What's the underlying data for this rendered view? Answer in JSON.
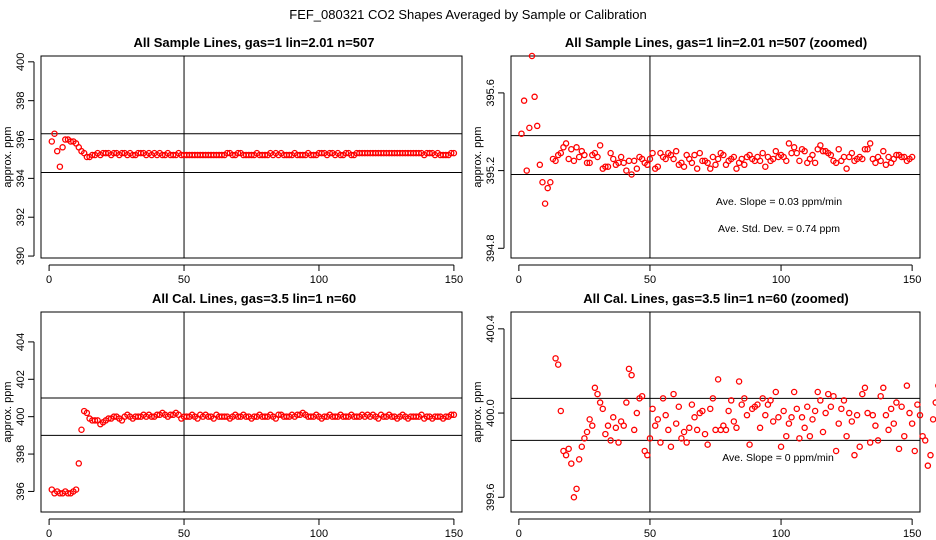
{
  "figure_title": "FEF_080321  CO2 Shapes Averaged by Sample or Calibration",
  "chart_data": [
    {
      "type": "scatter",
      "title": "All Sample Lines, gas=1 lin=2.01 n=507",
      "xlabel": "",
      "ylabel": "approx. ppm",
      "xlim": [
        -3,
        153
      ],
      "ylim": [
        389.9,
        400.3
      ],
      "xticks": [
        0,
        50,
        100,
        150
      ],
      "yticks": [
        390,
        392,
        394,
        396,
        398,
        400
      ],
      "vline": 50,
      "hlines": [
        394.3,
        396.3
      ],
      "annotations": [],
      "x_start": 1,
      "y": [
        395.9,
        396.3,
        395.4,
        394.6,
        395.6,
        396.0,
        396.0,
        395.9,
        395.9,
        395.8,
        395.6,
        395.4,
        395.3,
        395.1,
        395.1,
        395.2,
        395.2,
        395.3,
        395.2,
        395.3,
        395.3,
        395.3,
        395.2,
        395.3,
        395.3,
        395.2,
        395.3,
        395.3,
        395.2,
        395.3,
        395.2,
        395.2,
        395.3,
        395.3,
        395.3,
        395.2,
        395.3,
        395.2,
        395.3,
        395.2,
        395.3,
        395.2,
        395.2,
        395.3,
        395.2,
        395.2,
        395.2,
        395.3,
        395.2,
        395.2,
        395.2,
        395.2,
        395.2,
        395.2,
        395.2,
        395.2,
        395.2,
        395.2,
        395.2,
        395.2,
        395.2,
        395.2,
        395.2,
        395.2,
        395.2,
        395.3,
        395.3,
        395.2,
        395.2,
        395.3,
        395.3,
        395.2,
        395.2,
        395.2,
        395.2,
        395.2,
        395.3,
        395.2,
        395.2,
        395.2,
        395.2,
        395.3,
        395.2,
        395.3,
        395.2,
        395.3,
        395.2,
        395.2,
        395.2,
        395.2,
        395.3,
        395.2,
        395.2,
        395.2,
        395.2,
        395.3,
        395.2,
        395.2,
        395.2,
        395.3,
        395.3,
        395.3,
        395.2,
        395.3,
        395.3,
        395.2,
        395.3,
        395.2,
        395.2,
        395.3,
        395.3,
        395.2,
        395.2,
        395.3,
        395.3,
        395.3,
        395.3,
        395.3,
        395.3,
        395.3,
        395.3,
        395.3,
        395.3,
        395.3,
        395.3,
        395.3,
        395.3,
        395.3,
        395.3,
        395.3,
        395.3,
        395.3,
        395.3,
        395.3,
        395.3,
        395.3,
        395.3,
        395.3,
        395.2,
        395.3,
        395.3,
        395.3,
        395.2,
        395.3,
        395.2,
        395.2,
        395.2,
        395.2,
        395.3,
        395.3
      ]
    },
    {
      "type": "scatter",
      "title": "All Sample Lines, gas=1 lin=2.01 n=507 (zoomed)",
      "xlabel": "",
      "ylabel": "approx. ppm",
      "xlim": [
        -3,
        153
      ],
      "ylim": [
        394.75,
        395.79
      ],
      "xticks": [
        0,
        50,
        100,
        150
      ],
      "yticks": [
        394.8,
        395.2,
        395.6
      ],
      "yticklabels": [
        "394.8",
        "395.2",
        "395.6"
      ],
      "vline": 50,
      "hlines": [
        395.18,
        395.38
      ],
      "annotations": [
        "Ave. Slope =  0.03  ppm/min",
        "Ave. Std. Dev. =  0.74  ppm"
      ],
      "x_start": 1,
      "y": [
        395.39,
        395.56,
        395.2,
        395.42,
        395.79,
        395.58,
        395.43,
        395.23,
        395.14,
        395.03,
        395.11,
        395.14,
        395.26,
        395.25,
        395.28,
        395.29,
        395.32,
        395.34,
        395.26,
        395.31,
        395.25,
        395.32,
        395.27,
        395.3,
        395.28,
        395.24,
        395.24,
        395.28,
        395.29,
        395.27,
        395.33,
        395.21,
        395.22,
        395.22,
        395.29,
        395.26,
        395.23,
        395.24,
        395.27,
        395.24,
        395.2,
        395.25,
        395.18,
        395.25,
        395.21,
        395.27,
        395.26,
        395.24,
        395.23,
        395.26,
        395.29,
        395.21,
        395.22,
        395.29,
        395.27,
        395.26,
        395.29,
        395.28,
        395.26,
        395.3,
        395.23,
        395.24,
        395.22,
        395.28,
        395.26,
        395.24,
        395.28,
        395.21,
        395.29,
        395.25,
        395.25,
        395.24,
        395.21,
        395.27,
        395.23,
        395.26,
        395.29,
        395.28,
        395.23,
        395.25,
        395.26,
        395.27,
        395.21,
        395.24,
        395.26,
        395.23,
        395.27,
        395.28,
        395.26,
        395.25,
        395.27,
        395.25,
        395.29,
        395.22,
        395.27,
        395.25,
        395.26,
        395.3,
        395.27,
        395.28,
        395.27,
        395.25,
        395.34,
        395.29,
        395.32,
        395.29,
        395.25,
        395.31,
        395.3,
        395.24,
        395.26,
        395.28,
        395.24,
        395.31,
        395.33,
        395.3,
        395.3,
        395.29,
        395.28,
        395.25,
        395.24,
        395.31,
        395.25,
        395.27,
        395.21,
        395.27,
        395.29,
        395.25,
        395.26,
        395.27,
        395.26,
        395.31,
        395.31,
        395.34,
        395.26,
        395.24,
        395.27,
        395.25,
        395.3,
        395.23,
        395.27,
        395.24,
        395.26,
        395.28,
        395.28,
        395.27,
        395.27,
        395.25,
        395.26,
        395.27
      ]
    },
    {
      "type": "scatter",
      "title": "All Cal. Lines, gas=3.5 lin=1 n=60",
      "xlabel": "",
      "ylabel": "approx. ppm",
      "xlim": [
        -3,
        153
      ],
      "ylim": [
        394.9,
        405.6
      ],
      "xticks": [
        0,
        50,
        100,
        150
      ],
      "yticks": [
        396,
        398,
        400,
        402,
        404
      ],
      "vline": 50,
      "hlines": [
        399.0,
        401.0
      ],
      "annotations": [],
      "x_start": 1,
      "y": [
        396.1,
        395.9,
        396.0,
        395.9,
        395.9,
        396.0,
        395.9,
        395.9,
        396.0,
        396.1,
        397.5,
        399.3,
        400.3,
        400.2,
        399.9,
        399.8,
        399.8,
        399.8,
        399.6,
        399.7,
        399.8,
        399.9,
        399.9,
        400.0,
        400.0,
        399.9,
        399.8,
        400.0,
        400.1,
        400.0,
        399.9,
        400.0,
        400.0,
        400.0,
        400.1,
        400.0,
        400.1,
        400.0,
        400.0,
        400.1,
        400.1,
        400.2,
        400.1,
        400.0,
        400.1,
        400.1,
        400.2,
        400.1,
        399.9,
        400.0,
        400.0,
        400.0,
        400.1,
        400.0,
        399.9,
        400.1,
        400.0,
        400.1,
        400.0,
        400.0,
        399.9,
        400.1,
        400.0,
        400.0,
        400.0,
        400.0,
        399.9,
        400.0,
        400.1,
        400.0,
        400.0,
        400.1,
        400.0,
        400.0,
        399.9,
        400.0,
        400.0,
        400.1,
        400.0,
        400.0,
        400.0,
        400.1,
        400.0,
        399.9,
        400.1,
        400.1,
        400.0,
        400.0,
        400.0,
        400.1,
        400.0,
        400.1,
        400.1,
        400.2,
        400.1,
        400.0,
        400.0,
        400.0,
        400.1,
        400.0,
        399.9,
        400.0,
        400.0,
        400.1,
        400.0,
        400.0,
        400.0,
        400.1,
        400.0,
        400.0,
        400.0,
        400.1,
        400.0,
        400.0,
        400.0,
        400.1,
        400.0,
        400.1,
        400.0,
        400.1,
        400.0,
        399.9,
        400.1,
        400.0,
        400.0,
        400.1,
        400.0,
        400.0,
        399.9,
        400.0,
        400.1,
        400.0,
        399.9,
        400.0,
        400.0,
        400.0,
        400.0,
        400.1,
        399.9,
        400.0,
        400.0,
        399.9,
        400.0,
        400.0,
        400.0,
        399.9,
        400.0,
        400.0,
        400.1,
        400.1
      ]
    },
    {
      "type": "scatter",
      "title": "All Cal. Lines, gas=3.5 lin=1 n=60 (zoomed)",
      "xlabel": "",
      "ylabel": "approx. ppm",
      "xlim": [
        -3,
        153
      ],
      "ylim": [
        399.53,
        400.48
      ],
      "xticks": [
        0,
        50,
        100,
        150
      ],
      "yticks": [
        399.6,
        400.0,
        400.4
      ],
      "yticklabels": [
        "399.6",
        "400.0",
        "400.4"
      ],
      "vline": 50,
      "hlines": [
        399.87,
        400.07
      ],
      "annotations": [
        "Ave. Slope =  0  ppm/min"
      ],
      "x_start": 14,
      "y": [
        400.26,
        400.23,
        400.01,
        399.82,
        399.8,
        399.83,
        399.76,
        399.6,
        399.64,
        399.78,
        399.84,
        399.88,
        399.91,
        399.97,
        399.94,
        400.12,
        400.09,
        400.05,
        400.02,
        399.9,
        399.94,
        399.87,
        399.98,
        399.93,
        399.86,
        399.96,
        399.94,
        400.05,
        400.21,
        400.18,
        399.92,
        400.0,
        400.07,
        400.08,
        399.82,
        399.8,
        399.88,
        400.02,
        399.94,
        399.97,
        399.86,
        400.07,
        399.99,
        399.92,
        399.84,
        400.09,
        399.95,
        400.03,
        399.88,
        399.91,
        399.86,
        399.93,
        400.04,
        399.98,
        399.92,
        400.0,
        400.01,
        399.9,
        399.85,
        400.02,
        400.07,
        399.92,
        400.16,
        399.92,
        399.94,
        399.92,
        400.01,
        400.06,
        399.96,
        399.93,
        400.15,
        400.04,
        400.07,
        399.99,
        399.85,
        400.02,
        400.03,
        400.04,
        399.93,
        400.07,
        399.99,
        400.04,
        400.06,
        399.96,
        400.1,
        399.98,
        399.84,
        400.01,
        399.89,
        399.95,
        399.98,
        400.1,
        400.02,
        399.88,
        399.98,
        399.93,
        400.03,
        399.89,
        399.97,
        400.01,
        400.1,
        400.06,
        399.91,
        400.0,
        400.09,
        400.03,
        400.08,
        399.82,
        399.95,
        400.02,
        400.06,
        399.89,
        400.0,
        399.96,
        399.8,
        399.99,
        399.84,
        400.09,
        400.12,
        400.0,
        399.86,
        399.99,
        399.94,
        399.87,
        400.08,
        400.12,
        399.99,
        399.92,
        400.02,
        399.95,
        400.05,
        399.83,
        400.03,
        399.89,
        400.13,
        400.0,
        399.95,
        399.82,
        400.04,
        399.99,
        399.89,
        399.87,
        399.75,
        399.8,
        399.97,
        400.05,
        400.13
      ]
    }
  ]
}
